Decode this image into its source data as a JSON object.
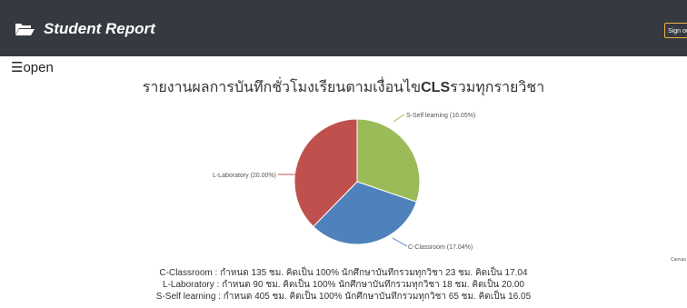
{
  "header": {
    "title": "Student Report",
    "sign_out_label": "Sign out",
    "brand_icon": "folder-open-icon"
  },
  "menu": {
    "toggle_label": "☰open"
  },
  "report": {
    "title_prefix": "รายงานผลการบันทึกชั่วโมงเรียนตามเงื่อนไข",
    "title_bold": "CLS",
    "title_suffix": "รวมทุกรายวิชา"
  },
  "chart_data": {
    "type": "pie",
    "categories": [
      "S-Self learning",
      "C-Classroom",
      "L-Laboratory"
    ],
    "values": [
      16.05,
      17.04,
      20.0
    ],
    "labels": [
      "S-Self learning (16.05%)",
      "C-Classroom (17.04%)",
      "L-Laboratory (20.00%)"
    ],
    "colors": [
      "#9bbb59",
      "#4f81bd",
      "#c0504d"
    ]
  },
  "side_label": "Canvas",
  "summary": [
    "C-Classroom : กำหนด 135 ชม. คิดเป็น 100% นักศึกษาบันทึกรวมทุกวิชา 23 ชม. คิดเป็น 17.04",
    "L-Laboratory : กำหนด 90 ชม. คิดเป็น 100% นักศึกษาบันทึกรวมทุกวิชา 18 ชม. คิดเป็น 20.00",
    "S-Self learning : กำหนด 405 ชม. คิดเป็น 100% นักศึกษาบันทึกรวมทุกวิชา 65 ชม. คิดเป็น 16.05"
  ]
}
